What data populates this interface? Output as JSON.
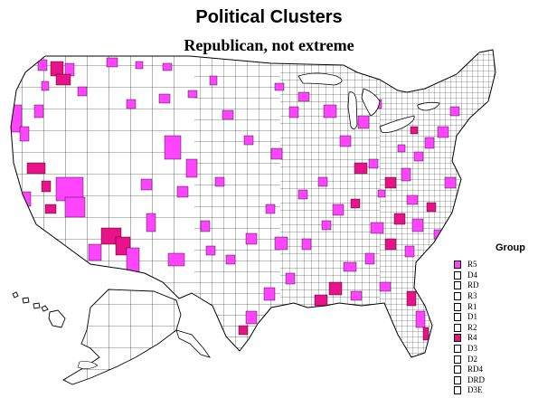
{
  "title": "Political Clusters",
  "subtitle": "Republican, not extreme",
  "legend": {
    "title": "Group",
    "items": [
      {
        "label": "R5",
        "color": "#ff44ff"
      },
      {
        "label": "D4",
        "color": "#ffffff"
      },
      {
        "label": "RD",
        "color": "#ffffff"
      },
      {
        "label": "R3",
        "color": "#ffffff"
      },
      {
        "label": "R1",
        "color": "#ffffff"
      },
      {
        "label": "D1",
        "color": "#ffffff"
      },
      {
        "label": "R2",
        "color": "#ffffff"
      },
      {
        "label": "R4",
        "color": "#e8128a"
      },
      {
        "label": "D3",
        "color": "#ffffff"
      },
      {
        "label": "D2",
        "color": "#ffffff"
      },
      {
        "label": "RD4",
        "color": "#ffffff"
      },
      {
        "label": "DRD",
        "color": "#ffffff"
      },
      {
        "label": "D3E",
        "color": "#ffffff"
      }
    ]
  },
  "colors": {
    "r5": "#ff44ff",
    "r4": "#e8128a",
    "other": "#ffffff",
    "border": "#000000"
  }
}
